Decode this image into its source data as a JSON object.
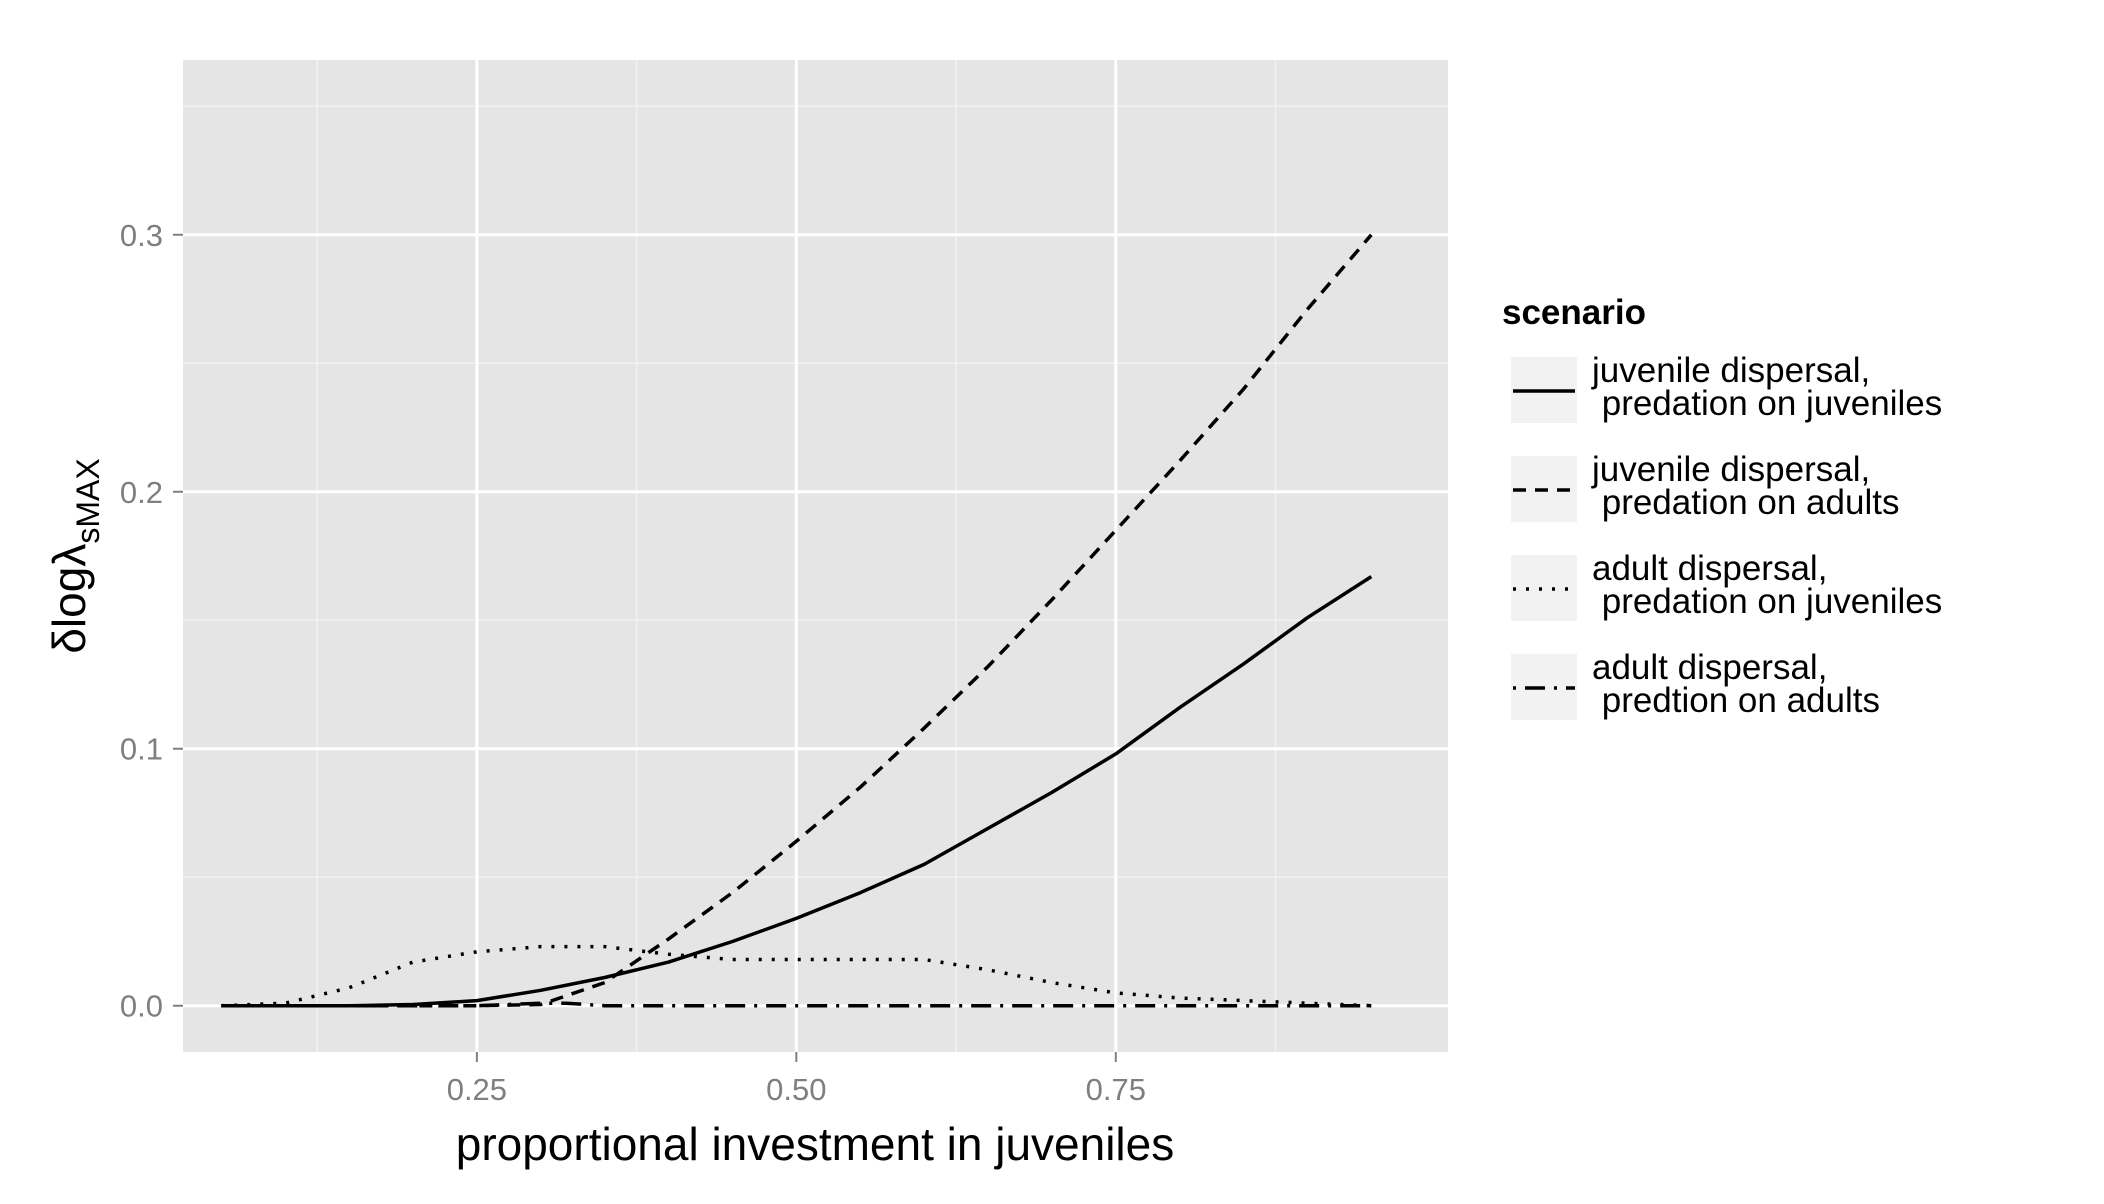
{
  "chart_data": {
    "type": "line",
    "title": "",
    "xlabel": "proportional investment in juveniles",
    "ylabel": {
      "main": "δlogλ",
      "subscript": "sMAX"
    },
    "xlim": [
      0.02,
      1.01
    ],
    "ylim": [
      -0.018,
      0.368
    ],
    "x_ticks": [
      {
        "value": 0.25,
        "label": "0.25"
      },
      {
        "value": 0.5,
        "label": "0.50"
      },
      {
        "value": 0.75,
        "label": "0.75"
      }
    ],
    "y_ticks": [
      {
        "value": 0.0,
        "label": "0.0"
      },
      {
        "value": 0.1,
        "label": "0.1"
      },
      {
        "value": 0.2,
        "label": "0.2"
      },
      {
        "value": 0.3,
        "label": "0.3"
      }
    ],
    "x_minor": [
      0.125,
      0.375,
      0.625,
      0.875
    ],
    "y_minor": [
      0.05,
      0.15,
      0.25,
      0.35
    ],
    "grid": true,
    "panel_color": "#e5e5e5",
    "line_color": "#000000",
    "legend": {
      "title": "scenario",
      "position": "right"
    },
    "series": [
      {
        "name_lines": [
          "juvenile dispersal,",
          " predation on juveniles"
        ],
        "dash": "solid",
        "x": [
          0.05,
          0.1,
          0.15,
          0.2,
          0.25,
          0.3,
          0.35,
          0.4,
          0.45,
          0.5,
          0.55,
          0.6,
          0.65,
          0.7,
          0.75,
          0.8,
          0.85,
          0.9,
          0.95
        ],
        "y": [
          0.0,
          0.0,
          0.0,
          0.0005,
          0.002,
          0.006,
          0.011,
          0.017,
          0.025,
          0.034,
          0.044,
          0.055,
          0.069,
          0.083,
          0.098,
          0.116,
          0.133,
          0.151,
          0.167
        ]
      },
      {
        "name_lines": [
          "juvenile dispersal,",
          " predation on adults"
        ],
        "dash": "dashed",
        "x": [
          0.05,
          0.1,
          0.15,
          0.2,
          0.25,
          0.3,
          0.35,
          0.4,
          0.45,
          0.5,
          0.55,
          0.6,
          0.65,
          0.7,
          0.75,
          0.8,
          0.85,
          0.9,
          0.95
        ],
        "y": [
          0.0,
          0.0,
          0.0,
          0.0,
          0.0,
          0.0005,
          0.009,
          0.026,
          0.044,
          0.064,
          0.085,
          0.108,
          0.132,
          0.158,
          0.185,
          0.212,
          0.24,
          0.271,
          0.3
        ]
      },
      {
        "name_lines": [
          "adult dispersal,",
          " predation on juveniles"
        ],
        "dash": "dotted",
        "x": [
          0.05,
          0.1,
          0.15,
          0.2,
          0.25,
          0.3,
          0.35,
          0.4,
          0.45,
          0.5,
          0.55,
          0.6,
          0.65,
          0.7,
          0.75,
          0.8,
          0.85,
          0.9,
          0.95
        ],
        "y": [
          0.0,
          0.001,
          0.007,
          0.017,
          0.021,
          0.023,
          0.023,
          0.02,
          0.018,
          0.018,
          0.018,
          0.018,
          0.014,
          0.009,
          0.005,
          0.003,
          0.002,
          0.001,
          0.0
        ]
      },
      {
        "name_lines": [
          "adult dispersal,",
          " predtion on adults"
        ],
        "dash": "dotdash",
        "x": [
          0.05,
          0.1,
          0.15,
          0.2,
          0.25,
          0.3,
          0.32,
          0.35,
          0.4,
          0.45,
          0.5,
          0.55,
          0.6,
          0.65,
          0.7,
          0.75,
          0.8,
          0.85,
          0.9,
          0.95
        ],
        "y": [
          0.0,
          0.0,
          0.0,
          0.0,
          0.0,
          0.001,
          0.001,
          0.0,
          0.0,
          0.0,
          0.0,
          0.0,
          0.0,
          0.0,
          0.0,
          0.0,
          0.0,
          0.0,
          0.0,
          0.0
        ]
      }
    ]
  }
}
